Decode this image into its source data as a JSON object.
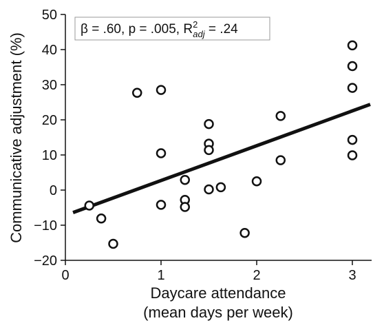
{
  "chart_data": {
    "type": "scatter",
    "title": "",
    "xlabel_line1": "Daycare attendance",
    "xlabel_line2": "(mean days per week)",
    "ylabel": "Communicative adjustment (%)",
    "xlim": [
      0,
      3.2
    ],
    "ylim": [
      -20,
      50
    ],
    "x_ticks": [
      0,
      1,
      2,
      3
    ],
    "x_tick_labels": [
      "0",
      "1",
      "2",
      "3"
    ],
    "y_ticks": [
      -20,
      -10,
      0,
      10,
      20,
      30,
      40,
      50
    ],
    "y_tick_labels": [
      "−20",
      "−10",
      "0",
      "10",
      "20",
      "30",
      "40",
      "50"
    ],
    "grid": false,
    "points": [
      {
        "x": 0.25,
        "y": -4.4
      },
      {
        "x": 0.375,
        "y": -8.1
      },
      {
        "x": 0.5,
        "y": -15.3
      },
      {
        "x": 0.75,
        "y": 27.7
      },
      {
        "x": 1.0,
        "y": 28.5
      },
      {
        "x": 1.0,
        "y": 10.5
      },
      {
        "x": 1.0,
        "y": -4.2
      },
      {
        "x": 1.25,
        "y": 2.9
      },
      {
        "x": 1.25,
        "y": -2.8
      },
      {
        "x": 1.25,
        "y": -4.8
      },
      {
        "x": 1.5,
        "y": 18.8
      },
      {
        "x": 1.5,
        "y": 13.2
      },
      {
        "x": 1.5,
        "y": 11.4
      },
      {
        "x": 1.5,
        "y": 0.2
      },
      {
        "x": 1.625,
        "y": 0.8
      },
      {
        "x": 1.875,
        "y": -12.2
      },
      {
        "x": 2.0,
        "y": 2.5
      },
      {
        "x": 2.25,
        "y": 21.1
      },
      {
        "x": 2.25,
        "y": 8.5
      },
      {
        "x": 3.0,
        "y": 41.2
      },
      {
        "x": 3.0,
        "y": 35.3
      },
      {
        "x": 3.0,
        "y": 29.1
      },
      {
        "x": 3.0,
        "y": 14.3
      },
      {
        "x": 3.0,
        "y": 9.9
      }
    ],
    "regression_line": {
      "x": [
        0.08,
        3.2
      ],
      "y": [
        -6.4,
        24.4
      ]
    },
    "annotation": {
      "beta": "β = .60",
      "sep1": ", ",
      "p": "p = .005",
      "sep2": ", ",
      "r_base": "R",
      "r_sup": "2",
      "r_sub": "adj",
      "r_val": " = .24"
    }
  }
}
